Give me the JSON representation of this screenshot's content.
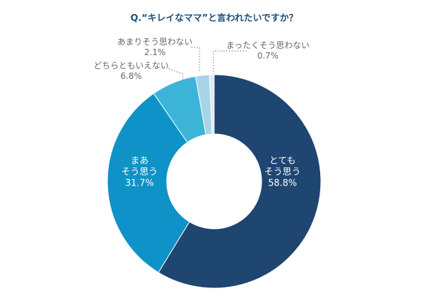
{
  "chart_data": {
    "type": "pie",
    "donut": true,
    "title": "Q.“キレイなママ”と言われたいですか？",
    "unit": "%",
    "slices": [
      {
        "label": "とても\nそう思う",
        "value": 58.8,
        "color": "#1f4571"
      },
      {
        "label": "まあ\nそう思う",
        "value": 31.7,
        "color": "#0f92c7"
      },
      {
        "label": "どちらともいえない",
        "value": 6.8,
        "color": "#3bb4d8"
      },
      {
        "label": "あまりそう思わない",
        "value": 2.1,
        "color": "#a9d4e6"
      },
      {
        "label": "まったくそう思わない",
        "value": 0.7,
        "color": "#d9ecf4"
      }
    ],
    "start_angle": "12 o'clock",
    "direction": "clockwise",
    "legend": "none"
  }
}
